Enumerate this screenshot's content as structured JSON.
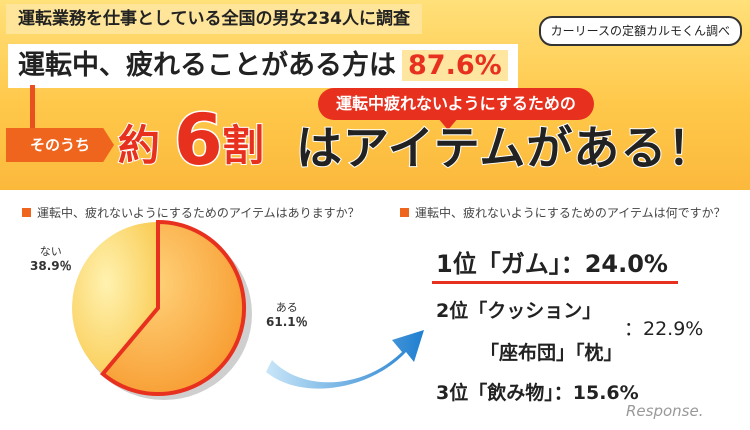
{
  "header": {
    "survey_title": "運転業務を仕事としている全国の男女234人に調査",
    "source": "カーリースの定額カルモくん調べ",
    "headline": "運転中、疲れることがある方は",
    "headline_pct": "87.6%",
    "sub_bubble": "運転中疲れないようにするための",
    "sonouchi": "そのうち",
    "yaku": "約",
    "num": "6",
    "wari": "割",
    "rest": "はアイテムがある！"
  },
  "colors": {
    "accent_red": "#e8301f",
    "accent_orange": "#f0651d",
    "banner_yellow": "#ffc84a",
    "slice_aru": "#f7a43a",
    "slice_nai": "#fbd36a",
    "arrow_blue": "#2a8fd8"
  },
  "chart_data": [
    {
      "type": "pie",
      "title": "運転中、疲れないようにするためのアイテムはありますか？",
      "slices": [
        {
          "label": "ある",
          "value": 61.1,
          "display": "61.1％",
          "highlighted": true
        },
        {
          "label": "ない",
          "value": 38.9,
          "display": "38.9％"
        }
      ]
    },
    {
      "type": "table",
      "title": "運転中、疲れないようにするためのアイテムは何ですか？",
      "rows": [
        {
          "rank": "1位",
          "item": "「ガム」",
          "value": 24.0,
          "display": "：24.0%"
        },
        {
          "rank": "2位",
          "item": "「クッション」",
          "item2": "「座布団」「枕」",
          "value": 22.9,
          "display": "：22.9%"
        },
        {
          "rank": "3位",
          "item": "「飲み物」",
          "value": 15.6,
          "display": "：15.6%"
        }
      ]
    }
  ],
  "watermark": "Response."
}
